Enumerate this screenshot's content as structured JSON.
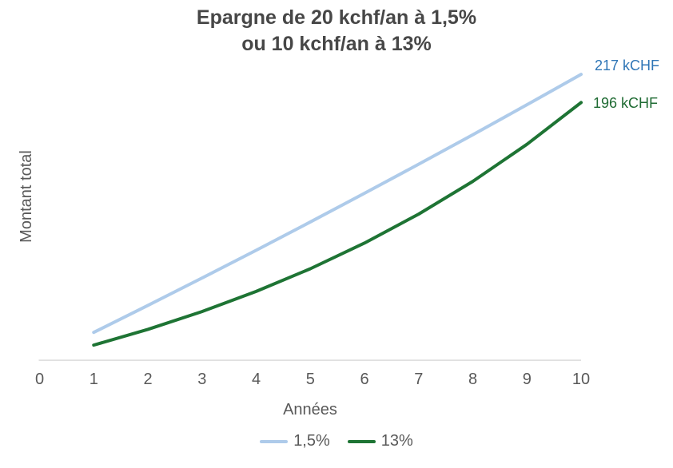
{
  "title": {
    "line1": "Epargne de 20 kchf/an à 1,5%",
    "line2": "ou 10 kchf/an à 13%"
  },
  "chart_data": {
    "type": "line",
    "title": "Epargne de 20 kchf/an à 1,5% ou 10 kchf/an à 13%",
    "xlabel": "Années",
    "ylabel": "Montant total",
    "x": [
      1,
      2,
      3,
      4,
      5,
      6,
      7,
      8,
      9,
      10
    ],
    "x_ticks": [
      0,
      1,
      2,
      3,
      4,
      5,
      6,
      7,
      8,
      9,
      10
    ],
    "xlim": [
      0,
      10
    ],
    "ylim": [
      0,
      230
    ],
    "grid": false,
    "legend_position": "bottom",
    "series": [
      {
        "name": "1,5%",
        "color": "#aecbea",
        "values": [
          20.3,
          40.9,
          61.8,
          83.0,
          104.6,
          126.5,
          148.7,
          171.2,
          194.1,
          217.3
        ],
        "end_label": "217 kCHF",
        "label_color": "#2e75b6"
      },
      {
        "name": "13%",
        "color": "#1e7434",
        "values": [
          10.6,
          22.6,
          36.2,
          51.6,
          68.9,
          88.5,
          110.6,
          135.6,
          163.9,
          195.8
        ],
        "end_label": "196 kCHF",
        "label_color": "#1f6b33"
      }
    ]
  },
  "colors": {
    "axis_line": "#d6d6d6",
    "tick_text": "#595959",
    "title_text": "#474747"
  }
}
